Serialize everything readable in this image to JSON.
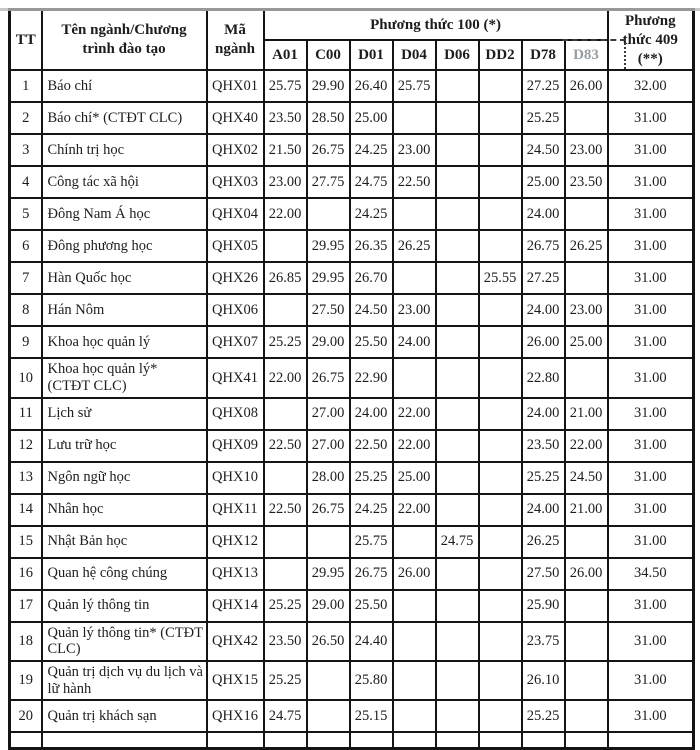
{
  "table": {
    "headers": {
      "tt": "TT",
      "name": "Tên ngành/Chương trình đào tạo",
      "code": "Mã ngành",
      "method100": "Phương thức 100 (*)",
      "method409": "Phương thức 409 (**)",
      "subjects": [
        "A01",
        "C00",
        "D01",
        "D04",
        "D06",
        "DD2",
        "D78",
        "D83"
      ]
    },
    "rows": [
      {
        "tt": "1",
        "name": "Báo chí",
        "code": "QHX01",
        "scores": [
          "25.75",
          "29.90",
          "26.40",
          "25.75",
          "",
          "",
          "27.25",
          "26.00"
        ],
        "m409": "32.00"
      },
      {
        "tt": "2",
        "name": "Báo chí* (CTĐT CLC)",
        "code": "QHX40",
        "scores": [
          "23.50",
          "28.50",
          "25.00",
          "",
          "",
          "",
          "25.25",
          ""
        ],
        "m409": "31.00"
      },
      {
        "tt": "3",
        "name": "Chính trị học",
        "code": "QHX02",
        "scores": [
          "21.50",
          "26.75",
          "24.25",
          "23.00",
          "",
          "",
          "24.50",
          "23.00"
        ],
        "m409": "31.00"
      },
      {
        "tt": "4",
        "name": "Công tác xã hội",
        "code": "QHX03",
        "scores": [
          "23.00",
          "27.75",
          "24.75",
          "22.50",
          "",
          "",
          "25.00",
          "23.50"
        ],
        "m409": "31.00"
      },
      {
        "tt": "5",
        "name": "Đông Nam Á học",
        "code": "QHX04",
        "scores": [
          "22.00",
          "",
          "24.25",
          "",
          "",
          "",
          "24.00",
          ""
        ],
        "m409": "31.00"
      },
      {
        "tt": "6",
        "name": "Đông phương học",
        "code": "QHX05",
        "scores": [
          "",
          "29.95",
          "26.35",
          "26.25",
          "",
          "",
          "26.75",
          "26.25"
        ],
        "m409": "31.00"
      },
      {
        "tt": "7",
        "name": "Hàn Quốc học",
        "code": "QHX26",
        "scores": [
          "26.85",
          "29.95",
          "26.70",
          "",
          "",
          "25.55",
          "27.25",
          ""
        ],
        "m409": "31.00"
      },
      {
        "tt": "8",
        "name": "Hán Nôm",
        "code": "QHX06",
        "scores": [
          "",
          "27.50",
          "24.50",
          "23.00",
          "",
          "",
          "24.00",
          "23.00"
        ],
        "m409": "31.00"
      },
      {
        "tt": "9",
        "name": "Khoa học quản lý",
        "code": "QHX07",
        "scores": [
          "25.25",
          "29.00",
          "25.50",
          "24.00",
          "",
          "",
          "26.00",
          "25.00"
        ],
        "m409": "31.00"
      },
      {
        "tt": "10",
        "name": "Khoa học quản lý* (CTĐT CLC)",
        "code": "QHX41",
        "scores": [
          "22.00",
          "26.75",
          "22.90",
          "",
          "",
          "",
          "22.80",
          ""
        ],
        "m409": "31.00"
      },
      {
        "tt": "11",
        "name": "Lịch sử",
        "code": "QHX08",
        "scores": [
          "",
          "27.00",
          "24.00",
          "22.00",
          "",
          "",
          "24.00",
          "21.00"
        ],
        "m409": "31.00"
      },
      {
        "tt": "12",
        "name": "Lưu trữ học",
        "code": "QHX09",
        "scores": [
          "22.50",
          "27.00",
          "22.50",
          "22.00",
          "",
          "",
          "23.50",
          "22.00"
        ],
        "m409": "31.00"
      },
      {
        "tt": "13",
        "name": "Ngôn ngữ học",
        "code": "QHX10",
        "scores": [
          "",
          "28.00",
          "25.25",
          "25.00",
          "",
          "",
          "25.25",
          "24.50"
        ],
        "m409": "31.00"
      },
      {
        "tt": "14",
        "name": "Nhân học",
        "code": "QHX11",
        "scores": [
          "22.50",
          "26.75",
          "24.25",
          "22.00",
          "",
          "",
          "24.00",
          "21.00"
        ],
        "m409": "31.00"
      },
      {
        "tt": "15",
        "name": "Nhật Bản học",
        "code": "QHX12",
        "scores": [
          "",
          "",
          "25.75",
          "",
          "24.75",
          "",
          "26.25",
          ""
        ],
        "m409": "31.00"
      },
      {
        "tt": "16",
        "name": "Quan hệ công chúng",
        "code": "QHX13",
        "scores": [
          "",
          "29.95",
          "26.75",
          "26.00",
          "",
          "",
          "27.50",
          "26.00"
        ],
        "m409": "34.50"
      },
      {
        "tt": "17",
        "name": "Quản lý thông tin",
        "code": "QHX14",
        "scores": [
          "25.25",
          "29.00",
          "25.50",
          "",
          "",
          "",
          "25.90",
          ""
        ],
        "m409": "31.00"
      },
      {
        "tt": "18",
        "name": "Quản lý thông tin* (CTĐT CLC)",
        "code": "QHX42",
        "scores": [
          "23.50",
          "26.50",
          "24.40",
          "",
          "",
          "",
          "23.75",
          ""
        ],
        "m409": "31.00"
      },
      {
        "tt": "19",
        "name": "Quản trị dịch vụ du lịch và lữ hành",
        "code": "QHX15",
        "scores": [
          "25.25",
          "",
          "25.80",
          "",
          "",
          "",
          "26.10",
          ""
        ],
        "m409": "31.00"
      },
      {
        "tt": "20",
        "name": "Quản trị khách sạn",
        "code": "QHX16",
        "scores": [
          "24.75",
          "",
          "25.15",
          "",
          "",
          "",
          "25.25",
          ""
        ],
        "m409": "31.00"
      }
    ]
  }
}
